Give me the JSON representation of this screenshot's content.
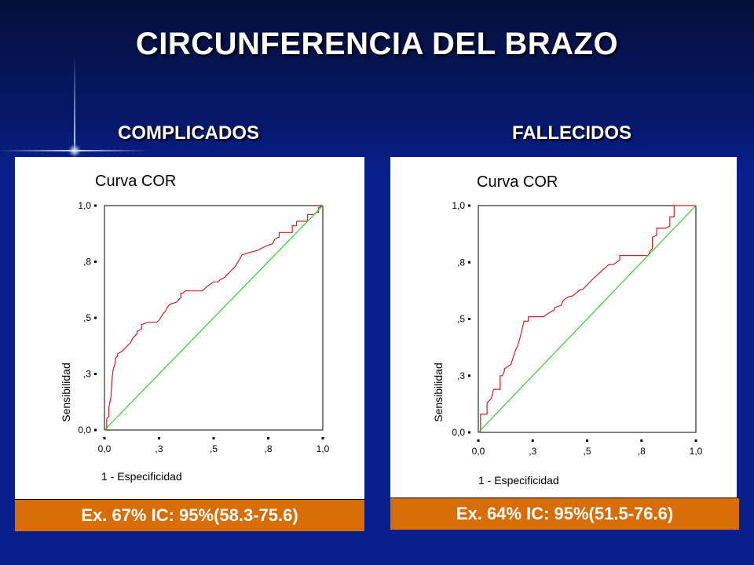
{
  "slide": {
    "title": "CIRCUNFERENCIA DEL BRAZO",
    "left_heading": "COMPLICADOS",
    "right_heading": "FALLECIDOS",
    "left_caption": "Ex. 67%  IC: 95%(58.3-75.6)",
    "right_caption": "Ex. 64%  IC: 95%(51.5-76.6)"
  },
  "colors": {
    "roc_line": "#cc2222",
    "reference_line": "#33cc33",
    "caption_bg": "#d76d06",
    "background": "#0a1f8c"
  },
  "chart_data": [
    {
      "type": "line",
      "title": "Curva COR",
      "xlabel": "1 - Especificidad",
      "ylabel": "Sensibilidad",
      "xlim": [
        0,
        1
      ],
      "ylim": [
        0,
        1
      ],
      "x_ticks": [
        0,
        0.25,
        0.5,
        0.75,
        1
      ],
      "x_tick_labels": [
        "0,0",
        ",3",
        ",5",
        ",8",
        "1,0"
      ],
      "y_ticks": [
        0,
        0.25,
        0.5,
        0.75,
        1
      ],
      "y_tick_labels": [
        "0,0",
        ",3",
        ",5",
        ",8",
        "1,0"
      ],
      "series": [
        {
          "role": "roc",
          "x": [
            0,
            0.01,
            0.01,
            0.02,
            0.02,
            0.03,
            0.035,
            0.04,
            0.05,
            0.05,
            0.06,
            0.06,
            0.08,
            0.1,
            0.11,
            0.12,
            0.13,
            0.14,
            0.15,
            0.15,
            0.17,
            0.17,
            0.2,
            0.22,
            0.24,
            0.25,
            0.27,
            0.28,
            0.29,
            0.3,
            0.33,
            0.34,
            0.35,
            0.35,
            0.36,
            0.37,
            0.45,
            0.46,
            0.47,
            0.5,
            0.52,
            0.53,
            0.55,
            0.56,
            0.57,
            0.58,
            0.6,
            0.63,
            0.66,
            0.7,
            0.72,
            0.74,
            0.77,
            0.78,
            0.8,
            0.8,
            0.86,
            0.86,
            0.88,
            0.88,
            0.93,
            0.93,
            0.96,
            0.97,
            0.98,
            0.98,
            1.0
          ],
          "y": [
            0,
            0.0,
            0.05,
            0.06,
            0.1,
            0.15,
            0.23,
            0.27,
            0.3,
            0.32,
            0.33,
            0.34,
            0.35,
            0.37,
            0.38,
            0.39,
            0.41,
            0.42,
            0.43,
            0.44,
            0.45,
            0.47,
            0.48,
            0.48,
            0.48,
            0.49,
            0.52,
            0.53,
            0.55,
            0.56,
            0.57,
            0.58,
            0.59,
            0.61,
            0.61,
            0.62,
            0.62,
            0.63,
            0.64,
            0.66,
            0.66,
            0.67,
            0.68,
            0.69,
            0.7,
            0.71,
            0.73,
            0.78,
            0.79,
            0.8,
            0.81,
            0.82,
            0.83,
            0.85,
            0.86,
            0.88,
            0.88,
            0.91,
            0.91,
            0.93,
            0.93,
            0.96,
            0.96,
            0.97,
            0.97,
            0.99,
            1.0
          ]
        },
        {
          "role": "reference",
          "x": [
            0,
            1
          ],
          "y": [
            0,
            1
          ]
        }
      ]
    },
    {
      "type": "line",
      "title": "Curva COR",
      "xlabel": "1 - Especificidad",
      "ylabel": "Sensibilidad",
      "xlim": [
        0,
        1
      ],
      "ylim": [
        0,
        1
      ],
      "x_ticks": [
        0,
        0.25,
        0.5,
        0.75,
        1
      ],
      "x_tick_labels": [
        "0,0",
        ",3",
        ",5",
        ",8",
        "1,0"
      ],
      "y_ticks": [
        0,
        0.25,
        0.5,
        0.75,
        1
      ],
      "y_tick_labels": [
        "0,0",
        ",3",
        ",5",
        ",8",
        "1,0"
      ],
      "series": [
        {
          "role": "roc",
          "x": [
            0,
            0.01,
            0.01,
            0.04,
            0.04,
            0.06,
            0.07,
            0.1,
            0.1,
            0.11,
            0.12,
            0.12,
            0.15,
            0.16,
            0.17,
            0.18,
            0.19,
            0.2,
            0.21,
            0.23,
            0.23,
            0.3,
            0.33,
            0.35,
            0.35,
            0.38,
            0.39,
            0.4,
            0.42,
            0.43,
            0.47,
            0.48,
            0.52,
            0.53,
            0.6,
            0.62,
            0.65,
            0.65,
            0.78,
            0.79,
            0.8,
            0.8,
            0.82,
            0.82,
            0.86,
            0.88,
            0.88,
            0.9,
            0.9,
            1.0
          ],
          "y": [
            0,
            0.0,
            0.08,
            0.08,
            0.13,
            0.15,
            0.19,
            0.19,
            0.25,
            0.25,
            0.27,
            0.28,
            0.3,
            0.33,
            0.36,
            0.38,
            0.41,
            0.45,
            0.49,
            0.49,
            0.51,
            0.51,
            0.53,
            0.54,
            0.55,
            0.56,
            0.58,
            0.59,
            0.6,
            0.6,
            0.63,
            0.63,
            0.67,
            0.68,
            0.74,
            0.74,
            0.76,
            0.78,
            0.78,
            0.8,
            0.81,
            0.86,
            0.87,
            0.9,
            0.9,
            0.91,
            0.95,
            0.95,
            1.0,
            1.0
          ]
        },
        {
          "role": "reference",
          "x": [
            0,
            1
          ],
          "y": [
            0,
            1
          ]
        }
      ]
    }
  ]
}
